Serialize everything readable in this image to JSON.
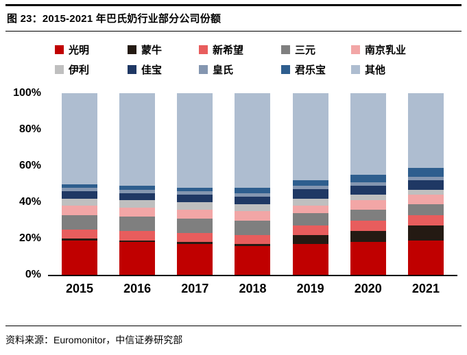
{
  "header": {
    "title": "图 23：2015-2021 年巴氏奶行业部分公司份额"
  },
  "footer": {
    "source": "资料来源：Euromonitor，中信证券研究部"
  },
  "chart_data": {
    "type": "bar",
    "stacked": true,
    "title": "2015-2021 年巴氏奶行业部分公司份额",
    "categories": [
      "2015",
      "2016",
      "2017",
      "2018",
      "2019",
      "2020",
      "2021"
    ],
    "series": [
      {
        "name": "光明",
        "color": "#c00000",
        "values": [
          19,
          18,
          17,
          16,
          17,
          18,
          19
        ]
      },
      {
        "name": "蒙牛",
        "color": "#241a13",
        "values": [
          1,
          1,
          1,
          1,
          5,
          6,
          8
        ]
      },
      {
        "name": "新希望",
        "color": "#e85d5d",
        "values": [
          5,
          5,
          5,
          5,
          5,
          6,
          6
        ]
      },
      {
        "name": "三元",
        "color": "#7f7f7f",
        "values": [
          8,
          8,
          8,
          8,
          7,
          6,
          6
        ]
      },
      {
        "name": "南京乳业",
        "color": "#f2a6a6",
        "values": [
          5,
          5,
          5,
          5,
          4,
          5,
          5
        ]
      },
      {
        "name": "伊利",
        "color": "#bfbfbf",
        "values": [
          4,
          4,
          4,
          4,
          4,
          3,
          3
        ]
      },
      {
        "name": "佳宝",
        "color": "#1f3864",
        "values": [
          4,
          4,
          4,
          4,
          5,
          5,
          5
        ]
      },
      {
        "name": "皇氏",
        "color": "#8496b0",
        "values": [
          2,
          2,
          2,
          2,
          2,
          2,
          2
        ]
      },
      {
        "name": "君乐宝",
        "color": "#2e5e8e",
        "values": [
          2,
          2,
          2,
          3,
          3,
          4,
          5
        ]
      },
      {
        "name": "其他",
        "color": "#aebdd0",
        "values": [
          50,
          51,
          52,
          52,
          48,
          45,
          41
        ]
      }
    ],
    "ylabel": "",
    "xlabel": "",
    "yticks": [
      "100%",
      "80%",
      "60%",
      "40%",
      "20%",
      "0%"
    ],
    "ylim": [
      0,
      100
    ],
    "grid": false,
    "legend_position": "top"
  }
}
